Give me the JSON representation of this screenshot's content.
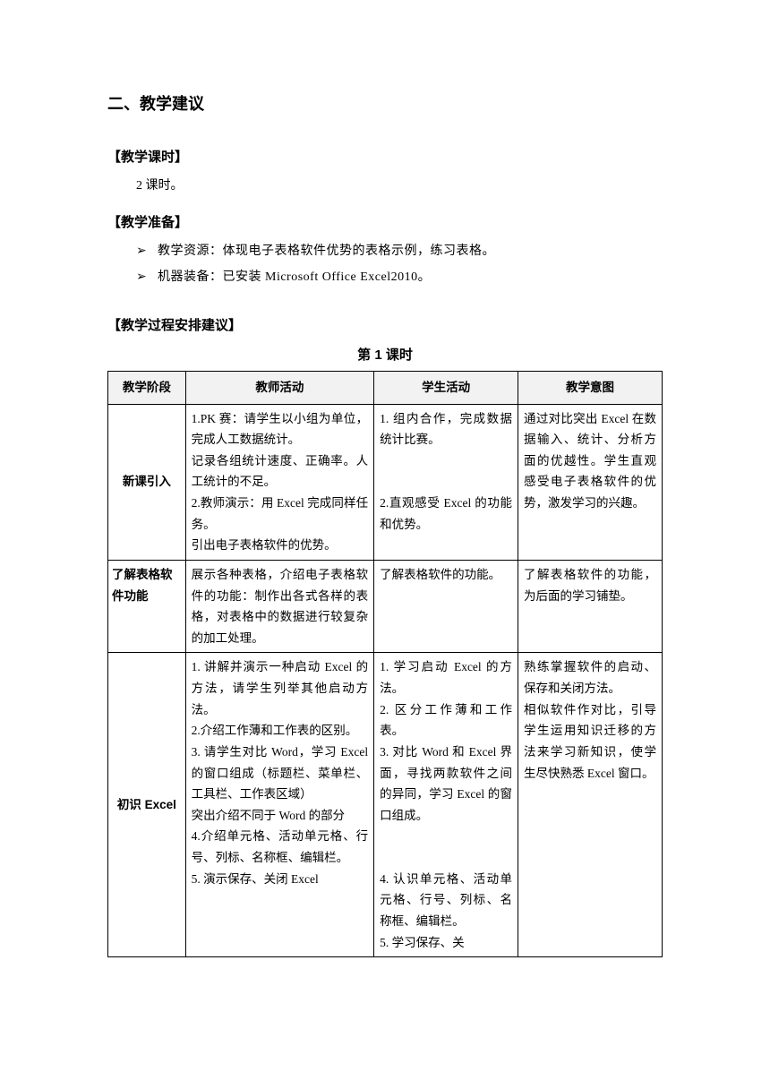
{
  "section_title": "二、教学建议",
  "hours": {
    "heading": "【教学课时】",
    "text": "2 课时。"
  },
  "prep": {
    "heading": "【教学准备】",
    "items": [
      "教学资源：体现电子表格软件优势的表格示例，练习表格。",
      "机器装备：已安装 Microsoft Office Excel2010。"
    ]
  },
  "plan": {
    "heading": "【教学过程安排建议】",
    "table_title": "第 1 课时",
    "columns": [
      "教学阶段",
      "教师活动",
      "学生活动",
      "教学意图"
    ],
    "rows": [
      {
        "stage": "新课引入",
        "teacher": "1.PK 赛：请学生以小组为单位，完成人工数据统计。\n记录各组统计速度、正确率。人工统计的不足。\n2.教师演示：用 Excel 完成同样任务。\n引出电子表格软件的优势。",
        "student": "1. 组内合作，完成数据统计比赛。\n\n2.直观感受 Excel 的功能和优势。",
        "purpose": "通过对比突出 Excel 在数据输入、统计、分析方面的优越性。学生直观感受电子表格软件的优势，激发学习的兴趣。"
      },
      {
        "stage": "了解表格软件功能",
        "teacher": "展示各种表格，介绍电子表格软件的功能：制作出各式各样的表格，对表格中的数据进行较复杂的加工处理。",
        "student": "了解表格软件的功能。",
        "purpose": "了解表格软件的功能，为后面的学习铺垫。"
      },
      {
        "stage": "初识 Excel",
        "teacher": "1. 讲解并演示一种启动 Excel 的方法，请学生列举其他启动方法。\n2.介绍工作薄和工作表的区别。\n3. 请学生对比 Word，学习 Excel 的窗口组成（标题栏、菜单栏、工具栏、工作表区域）\n突出介绍不同于 Word 的部分\n4.介绍单元格、活动单元格、行号、列标、名称框、编辑栏。\n5. 演示保存、关闭 Excel",
        "student": "1. 学习启动 Excel 的方法。\n2. 区分工作薄和工作表。\n3. 对比 Word 和 Excel 界面，寻找两款软件之间的异同，学习 Excel 的窗口组成。\n\n4. 认识单元格、活动单元格、行号、列标、名称框、编辑栏。\n5. 学习保存、关",
        "purpose": "熟练掌握软件的启动、保存和关闭方法。\n相似软件作对比，引导学生运用知识迁移的方法来学习新知识，使学生尽快熟悉 Excel 窗口。"
      }
    ]
  }
}
